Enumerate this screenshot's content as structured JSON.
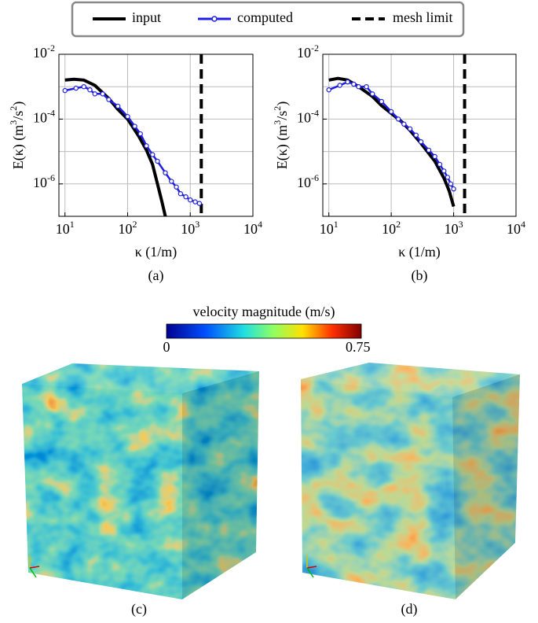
{
  "chart_data": [
    {
      "type": "line",
      "panel_label": "(a)",
      "x_label": "κ (1/m)",
      "y_label": "E(κ) (m^3/s^2)",
      "xscale": "log",
      "yscale": "log",
      "grid": true,
      "xlim": [
        8,
        10000
      ],
      "ylim": [
        1e-07,
        0.01
      ],
      "xticks": [
        {
          "value": 10,
          "label": "10^1"
        },
        {
          "value": 100,
          "label": "10^2"
        },
        {
          "value": 1000,
          "label": "10^3"
        },
        {
          "value": 10000,
          "label": "10^4"
        }
      ],
      "yticks": [
        {
          "value": 1e-06,
          "label": "10^-6"
        },
        {
          "value": 0.0001,
          "label": "10^-4"
        },
        {
          "value": 0.01,
          "label": "10^-2"
        }
      ],
      "minor_yticks": [
        1e-07,
        1e-05,
        0.001
      ],
      "mesh_limit": {
        "name": "mesh limit",
        "x": 1500,
        "color": "#000000"
      },
      "series": [
        {
          "name": "input",
          "color": "#000000",
          "markers": false,
          "x": [
            10,
            14,
            20,
            30,
            50,
            70,
            100,
            150,
            200,
            250,
            300,
            350,
            400
          ],
          "values": [
            0.0016,
            0.0017,
            0.0016,
            0.0011,
            0.00043,
            0.0002,
            0.0001,
            3e-05,
            1.1e-05,
            4e-06,
            1e-06,
            3e-07,
            1e-07
          ]
        },
        {
          "name": "computed",
          "color": "#1f1fe0",
          "markers": true,
          "x": [
            10,
            15,
            20,
            25,
            30,
            40,
            50,
            70,
            100,
            130,
            160,
            200,
            250,
            300,
            400,
            500,
            600,
            700,
            850,
            1000,
            1200,
            1400
          ],
          "values": [
            0.00076,
            0.0009,
            0.001,
            0.0008,
            0.0006,
            0.0006,
            0.0004,
            0.00025,
            0.00012,
            6e-05,
            3.5e-05,
            1.5e-05,
            8e-06,
            5e-06,
            2.2e-06,
            1.2e-06,
            8e-07,
            5e-07,
            4e-07,
            3.2e-07,
            2.8e-07,
            2.5e-07
          ]
        }
      ]
    },
    {
      "type": "line",
      "panel_label": "(b)",
      "x_label": "κ (1/m)",
      "y_label": "E(κ) (m^3/s^2)",
      "xscale": "log",
      "yscale": "log",
      "grid": true,
      "xlim": [
        8,
        10000
      ],
      "ylim": [
        1e-07,
        0.01
      ],
      "xticks": [
        {
          "value": 10,
          "label": "10^1"
        },
        {
          "value": 100,
          "label": "10^2"
        },
        {
          "value": 1000,
          "label": "10^3"
        },
        {
          "value": 10000,
          "label": "10^4"
        }
      ],
      "yticks": [
        {
          "value": 1e-06,
          "label": "10^-6"
        },
        {
          "value": 0.0001,
          "label": "10^-4"
        },
        {
          "value": 0.01,
          "label": "10^-2"
        }
      ],
      "minor_yticks": [
        1e-07,
        1e-05,
        0.001
      ],
      "mesh_limit": {
        "name": "mesh limit",
        "x": 1500,
        "color": "#000000"
      },
      "series": [
        {
          "name": "input",
          "color": "#000000",
          "markers": false,
          "x": [
            10,
            14,
            20,
            30,
            50,
            70,
            100,
            150,
            200,
            300,
            500,
            700,
            850,
            1000
          ],
          "values": [
            0.0016,
            0.0018,
            0.0016,
            0.001,
            0.0005,
            0.00026,
            0.00015,
            8e-05,
            4.5e-05,
            1.8e-05,
            5e-06,
            1.5e-06,
            6e-07,
            2e-07
          ]
        },
        {
          "name": "computed",
          "color": "#1f1fe0",
          "markers": true,
          "x": [
            10,
            15,
            20,
            25,
            30,
            40,
            50,
            70,
            100,
            130,
            160,
            200,
            250,
            300,
            400,
            500,
            600,
            700,
            800,
            900,
            1000
          ],
          "values": [
            0.0008,
            0.0011,
            0.0014,
            0.0012,
            0.001,
            0.001,
            0.0006,
            0.00035,
            0.00017,
            0.0001,
            7e-05,
            5e-05,
            3.2e-05,
            2e-05,
            1.1e-05,
            7e-06,
            4e-06,
            2.5e-06,
            1.6e-06,
            1e-06,
            7e-07
          ]
        }
      ]
    }
  ],
  "colorbar": {
    "title": "velocity magnitude (m/s)",
    "ticks": [
      0,
      0.75
    ]
  },
  "panels": [
    {
      "label": "(c)"
    },
    {
      "label": "(d)"
    }
  ]
}
